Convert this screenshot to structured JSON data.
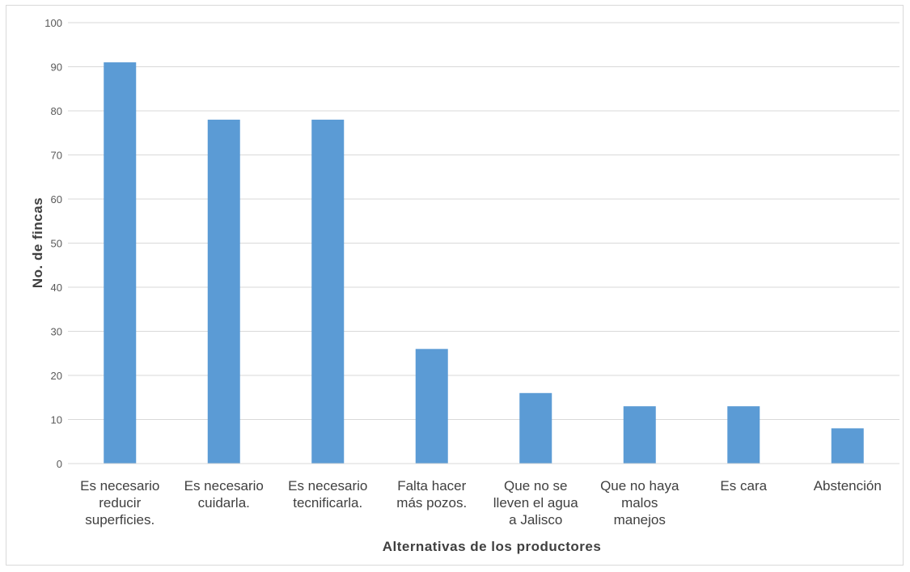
{
  "chart_data": {
    "type": "bar",
    "title": "",
    "xlabel": "Alternativas de los productores",
    "ylabel": "No. de fincas",
    "ylim": [
      0,
      100
    ],
    "yticks": [
      0,
      10,
      20,
      30,
      40,
      50,
      60,
      70,
      80,
      90,
      100
    ],
    "grid": true,
    "legend": "none",
    "bar_color": "#5b9bd5",
    "categories": [
      [
        "Es necesario",
        "reducir",
        "superficies."
      ],
      [
        "Es necesario",
        "cuidarla."
      ],
      [
        "Es necesario",
        "tecnificarla."
      ],
      [
        "Falta hacer",
        "más pozos."
      ],
      [
        "Que no se",
        "lleven el agua",
        "a Jalisco"
      ],
      [
        "Que no haya",
        "malos",
        "manejos"
      ],
      [
        "Es cara"
      ],
      [
        "Abstención"
      ]
    ],
    "values": [
      91,
      78,
      78,
      26,
      16,
      13,
      13,
      8
    ]
  }
}
